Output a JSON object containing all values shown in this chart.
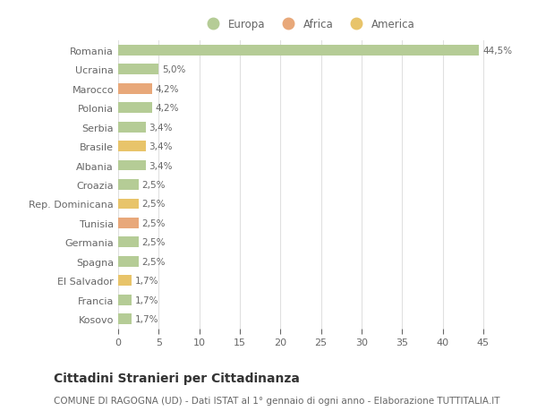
{
  "countries": [
    "Kosovo",
    "Francia",
    "El Salvador",
    "Spagna",
    "Germania",
    "Tunisia",
    "Rep. Dominicana",
    "Croazia",
    "Albania",
    "Brasile",
    "Serbia",
    "Polonia",
    "Marocco",
    "Ucraina",
    "Romania"
  ],
  "values": [
    1.7,
    1.7,
    1.7,
    2.5,
    2.5,
    2.5,
    2.5,
    2.5,
    3.4,
    3.4,
    3.4,
    4.2,
    4.2,
    5.0,
    44.5
  ],
  "labels": [
    "1,7%",
    "1,7%",
    "1,7%",
    "2,5%",
    "2,5%",
    "2,5%",
    "2,5%",
    "2,5%",
    "3,4%",
    "3,4%",
    "3,4%",
    "4,2%",
    "4,2%",
    "5,0%",
    "44,5%"
  ],
  "colors": [
    "#b5cc96",
    "#b5cc96",
    "#e8c46a",
    "#b5cc96",
    "#b5cc96",
    "#e8a87a",
    "#e8c46a",
    "#b5cc96",
    "#b5cc96",
    "#e8c46a",
    "#b5cc96",
    "#b5cc96",
    "#e8a87a",
    "#b5cc96",
    "#b5cc96"
  ],
  "legend_colors": {
    "Europa": "#b5cc96",
    "Africa": "#e8a87a",
    "America": "#e8c46a"
  },
  "title": "Cittadini Stranieri per Cittadinanza",
  "subtitle": "COMUNE DI RAGOGNA (UD) - Dati ISTAT al 1° gennaio di ogni anno - Elaborazione TUTTITALIA.IT",
  "xlim": [
    0,
    47
  ],
  "background_color": "#ffffff",
  "grid_color": "#e0e0e0",
  "bar_height": 0.55,
  "title_fontsize": 10,
  "subtitle_fontsize": 7.5,
  "tick_fontsize": 8,
  "label_fontsize": 7.5,
  "legend_fontsize": 8.5
}
